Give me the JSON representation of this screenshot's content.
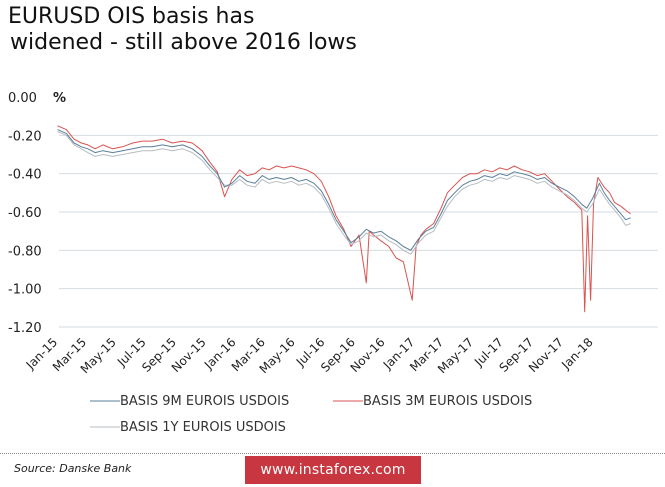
{
  "title_line1": "EURUSD OIS basis has",
  "title_line2": " widened - still above 2016  lows",
  "source": "Source: Danske Bank",
  "watermark": "www.instaforex.com",
  "colors": {
    "series_9m": "#5a7f9a",
    "series_3m": "#d9534f",
    "series_1y": "#b5bcc3",
    "grid": "#d6dbe0",
    "watermark_bg": "#c8373f"
  },
  "chart_data": {
    "type": "line",
    "title": "EURUSD OIS basis has widened - still above 2016  lows",
    "ylabel": "%",
    "ylim": [
      -1.2,
      0.0
    ],
    "yticks": [
      0.0,
      -0.2,
      -0.4,
      -0.6,
      -0.8,
      -1.0,
      -1.2
    ],
    "ytick_labels": [
      "0.00",
      "-0.20",
      "-0.40",
      "-0.60",
      "-0.80",
      "-1.00",
      "-1.20"
    ],
    "xlim": [
      "2015-01-01",
      "2018-03-31"
    ],
    "x_tick_labels": [
      "Jan-15",
      "Mar-15",
      "May-15",
      "Jul-15",
      "Sep-15",
      "Nov-15",
      "Jan-16",
      "Mar-16",
      "May-16",
      "Jul-16",
      "Sep-16",
      "Nov-16",
      "Jan-17",
      "Mar-17",
      "May-17",
      "Jul-17",
      "Sep-17",
      "Nov-17",
      "Jan-18"
    ],
    "x_tick_dates": [
      "2015-01-01",
      "2015-03-01",
      "2015-05-01",
      "2015-07-01",
      "2015-09-01",
      "2015-11-01",
      "2016-01-01",
      "2016-03-01",
      "2016-05-01",
      "2016-07-01",
      "2016-09-01",
      "2016-11-01",
      "2017-01-01",
      "2017-03-01",
      "2017-05-01",
      "2017-07-01",
      "2017-09-01",
      "2017-11-01",
      "2018-01-01"
    ],
    "grid": "horizontal",
    "legend_position": "bottom",
    "series": [
      {
        "name": "BASIS 9M EUROIS USDOIS",
        "color": "#5a7f9a",
        "points": [
          [
            "2015-01-02",
            -0.17
          ],
          [
            "2015-01-20",
            -0.19
          ],
          [
            "2015-02-05",
            -0.24
          ],
          [
            "2015-02-20",
            -0.26
          ],
          [
            "2015-03-05",
            -0.27
          ],
          [
            "2015-03-20",
            -0.29
          ],
          [
            "2015-04-05",
            -0.28
          ],
          [
            "2015-04-25",
            -0.29
          ],
          [
            "2015-05-15",
            -0.28
          ],
          [
            "2015-06-05",
            -0.27
          ],
          [
            "2015-06-25",
            -0.26
          ],
          [
            "2015-07-15",
            -0.26
          ],
          [
            "2015-08-05",
            -0.25
          ],
          [
            "2015-08-25",
            -0.26
          ],
          [
            "2015-09-15",
            -0.25
          ],
          [
            "2015-10-05",
            -0.27
          ],
          [
            "2015-10-25",
            -0.31
          ],
          [
            "2015-11-10",
            -0.36
          ],
          [
            "2015-11-25",
            -0.4
          ],
          [
            "2015-12-10",
            -0.47
          ],
          [
            "2015-12-25",
            -0.45
          ],
          [
            "2016-01-10",
            -0.41
          ],
          [
            "2016-01-25",
            -0.44
          ],
          [
            "2016-02-10",
            -0.45
          ],
          [
            "2016-02-25",
            -0.41
          ],
          [
            "2016-03-10",
            -0.43
          ],
          [
            "2016-03-25",
            -0.42
          ],
          [
            "2016-04-10",
            -0.43
          ],
          [
            "2016-04-25",
            -0.42
          ],
          [
            "2016-05-10",
            -0.44
          ],
          [
            "2016-05-25",
            -0.43
          ],
          [
            "2016-06-10",
            -0.45
          ],
          [
            "2016-06-25",
            -0.49
          ],
          [
            "2016-07-10",
            -0.56
          ],
          [
            "2016-07-25",
            -0.64
          ],
          [
            "2016-08-10",
            -0.7
          ],
          [
            "2016-08-25",
            -0.76
          ],
          [
            "2016-09-10",
            -0.73
          ],
          [
            "2016-09-25",
            -0.69
          ],
          [
            "2016-10-10",
            -0.71
          ],
          [
            "2016-10-25",
            -0.7
          ],
          [
            "2016-11-10",
            -0.73
          ],
          [
            "2016-11-25",
            -0.75
          ],
          [
            "2016-12-10",
            -0.78
          ],
          [
            "2016-12-25",
            -0.8
          ],
          [
            "2017-01-10",
            -0.74
          ],
          [
            "2017-01-25",
            -0.7
          ],
          [
            "2017-02-10",
            -0.68
          ],
          [
            "2017-02-25",
            -0.61
          ],
          [
            "2017-03-10",
            -0.54
          ],
          [
            "2017-03-25",
            -0.5
          ],
          [
            "2017-04-10",
            -0.46
          ],
          [
            "2017-04-25",
            -0.44
          ],
          [
            "2017-05-10",
            -0.43
          ],
          [
            "2017-05-25",
            -0.41
          ],
          [
            "2017-06-10",
            -0.42
          ],
          [
            "2017-06-25",
            -0.4
          ],
          [
            "2017-07-10",
            -0.41
          ],
          [
            "2017-07-25",
            -0.39
          ],
          [
            "2017-08-10",
            -0.4
          ],
          [
            "2017-08-25",
            -0.41
          ],
          [
            "2017-09-10",
            -0.43
          ],
          [
            "2017-09-25",
            -0.42
          ],
          [
            "2017-10-10",
            -0.45
          ],
          [
            "2017-10-25",
            -0.47
          ],
          [
            "2017-11-10",
            -0.49
          ],
          [
            "2017-11-25",
            -0.52
          ],
          [
            "2017-12-10",
            -0.56
          ],
          [
            "2017-12-20",
            -0.58
          ],
          [
            "2018-01-01",
            -0.53
          ],
          [
            "2018-01-15",
            -0.45
          ],
          [
            "2018-01-25",
            -0.5
          ],
          [
            "2018-02-05",
            -0.54
          ],
          [
            "2018-02-15",
            -0.57
          ],
          [
            "2018-02-28",
            -0.61
          ],
          [
            "2018-03-10",
            -0.64
          ],
          [
            "2018-03-20",
            -0.63
          ]
        ]
      },
      {
        "name": "BASIS 3M EUROIS USDOIS",
        "color": "#d9534f",
        "points": [
          [
            "2015-01-02",
            -0.15
          ],
          [
            "2015-01-20",
            -0.17
          ],
          [
            "2015-02-05",
            -0.22
          ],
          [
            "2015-02-20",
            -0.24
          ],
          [
            "2015-03-05",
            -0.25
          ],
          [
            "2015-03-20",
            -0.27
          ],
          [
            "2015-04-05",
            -0.25
          ],
          [
            "2015-04-25",
            -0.27
          ],
          [
            "2015-05-15",
            -0.26
          ],
          [
            "2015-06-05",
            -0.24
          ],
          [
            "2015-06-25",
            -0.23
          ],
          [
            "2015-07-15",
            -0.23
          ],
          [
            "2015-08-05",
            -0.22
          ],
          [
            "2015-08-25",
            -0.24
          ],
          [
            "2015-09-15",
            -0.23
          ],
          [
            "2015-10-05",
            -0.24
          ],
          [
            "2015-10-25",
            -0.28
          ],
          [
            "2015-11-10",
            -0.34
          ],
          [
            "2015-11-25",
            -0.39
          ],
          [
            "2015-12-10",
            -0.52
          ],
          [
            "2015-12-25",
            -0.43
          ],
          [
            "2016-01-10",
            -0.38
          ],
          [
            "2016-01-25",
            -0.41
          ],
          [
            "2016-02-10",
            -0.4
          ],
          [
            "2016-02-25",
            -0.37
          ],
          [
            "2016-03-10",
            -0.38
          ],
          [
            "2016-03-25",
            -0.36
          ],
          [
            "2016-04-10",
            -0.37
          ],
          [
            "2016-04-25",
            -0.36
          ],
          [
            "2016-05-10",
            -0.37
          ],
          [
            "2016-05-25",
            -0.38
          ],
          [
            "2016-06-10",
            -0.4
          ],
          [
            "2016-06-25",
            -0.44
          ],
          [
            "2016-07-10",
            -0.52
          ],
          [
            "2016-07-25",
            -0.62
          ],
          [
            "2016-08-10",
            -0.69
          ],
          [
            "2016-08-25",
            -0.78
          ],
          [
            "2016-09-10",
            -0.72
          ],
          [
            "2016-09-25",
            -0.97
          ],
          [
            "2016-10-01",
            -0.7
          ],
          [
            "2016-10-10",
            -0.72
          ],
          [
            "2016-10-25",
            -0.75
          ],
          [
            "2016-11-10",
            -0.78
          ],
          [
            "2016-11-25",
            -0.84
          ],
          [
            "2016-12-10",
            -0.86
          ],
          [
            "2016-12-28",
            -1.06
          ],
          [
            "2017-01-05",
            -0.78
          ],
          [
            "2017-01-15",
            -0.72
          ],
          [
            "2017-01-25",
            -0.69
          ],
          [
            "2017-02-10",
            -0.66
          ],
          [
            "2017-02-25",
            -0.58
          ],
          [
            "2017-03-10",
            -0.5
          ],
          [
            "2017-03-25",
            -0.46
          ],
          [
            "2017-04-10",
            -0.42
          ],
          [
            "2017-04-25",
            -0.4
          ],
          [
            "2017-05-10",
            -0.4
          ],
          [
            "2017-05-25",
            -0.38
          ],
          [
            "2017-06-10",
            -0.39
          ],
          [
            "2017-06-25",
            -0.37
          ],
          [
            "2017-07-10",
            -0.38
          ],
          [
            "2017-07-25",
            -0.36
          ],
          [
            "2017-08-10",
            -0.38
          ],
          [
            "2017-08-25",
            -0.39
          ],
          [
            "2017-09-10",
            -0.41
          ],
          [
            "2017-09-25",
            -0.4
          ],
          [
            "2017-10-10",
            -0.44
          ],
          [
            "2017-10-25",
            -0.48
          ],
          [
            "2017-11-10",
            -0.52
          ],
          [
            "2017-11-25",
            -0.55
          ],
          [
            "2017-12-10",
            -0.59
          ],
          [
            "2017-12-16",
            -1.12
          ],
          [
            "2017-12-22",
            -0.62
          ],
          [
            "2017-12-28",
            -1.06
          ],
          [
            "2018-01-03",
            -0.56
          ],
          [
            "2018-01-12",
            -0.42
          ],
          [
            "2018-01-25",
            -0.47
          ],
          [
            "2018-02-05",
            -0.5
          ],
          [
            "2018-02-15",
            -0.55
          ],
          [
            "2018-02-28",
            -0.57
          ],
          [
            "2018-03-10",
            -0.59
          ],
          [
            "2018-03-20",
            -0.61
          ]
        ]
      },
      {
        "name": "BASIS 1Y EUROIS USDOIS",
        "color": "#b5bcc3",
        "points": [
          [
            "2015-01-02",
            -0.18
          ],
          [
            "2015-01-20",
            -0.2
          ],
          [
            "2015-02-05",
            -0.25
          ],
          [
            "2015-02-20",
            -0.27
          ],
          [
            "2015-03-05",
            -0.29
          ],
          [
            "2015-03-20",
            -0.31
          ],
          [
            "2015-04-05",
            -0.3
          ],
          [
            "2015-04-25",
            -0.31
          ],
          [
            "2015-05-15",
            -0.3
          ],
          [
            "2015-06-05",
            -0.29
          ],
          [
            "2015-06-25",
            -0.28
          ],
          [
            "2015-07-15",
            -0.28
          ],
          [
            "2015-08-05",
            -0.27
          ],
          [
            "2015-08-25",
            -0.28
          ],
          [
            "2015-09-15",
            -0.27
          ],
          [
            "2015-10-05",
            -0.29
          ],
          [
            "2015-10-25",
            -0.33
          ],
          [
            "2015-11-10",
            -0.38
          ],
          [
            "2015-11-25",
            -0.42
          ],
          [
            "2015-12-10",
            -0.46
          ],
          [
            "2015-12-25",
            -0.46
          ],
          [
            "2016-01-10",
            -0.43
          ],
          [
            "2016-01-25",
            -0.46
          ],
          [
            "2016-02-10",
            -0.47
          ],
          [
            "2016-02-25",
            -0.43
          ],
          [
            "2016-03-10",
            -0.45
          ],
          [
            "2016-03-25",
            -0.44
          ],
          [
            "2016-04-10",
            -0.45
          ],
          [
            "2016-04-25",
            -0.44
          ],
          [
            "2016-05-10",
            -0.46
          ],
          [
            "2016-05-25",
            -0.45
          ],
          [
            "2016-06-10",
            -0.47
          ],
          [
            "2016-06-25",
            -0.51
          ],
          [
            "2016-07-10",
            -0.58
          ],
          [
            "2016-07-25",
            -0.66
          ],
          [
            "2016-08-10",
            -0.72
          ],
          [
            "2016-08-25",
            -0.77
          ],
          [
            "2016-09-10",
            -0.75
          ],
          [
            "2016-09-25",
            -0.71
          ],
          [
            "2016-10-10",
            -0.73
          ],
          [
            "2016-10-25",
            -0.72
          ],
          [
            "2016-11-10",
            -0.75
          ],
          [
            "2016-11-25",
            -0.77
          ],
          [
            "2016-12-10",
            -0.8
          ],
          [
            "2016-12-25",
            -0.82
          ],
          [
            "2017-01-10",
            -0.76
          ],
          [
            "2017-01-25",
            -0.72
          ],
          [
            "2017-02-10",
            -0.7
          ],
          [
            "2017-02-25",
            -0.63
          ],
          [
            "2017-03-10",
            -0.57
          ],
          [
            "2017-03-25",
            -0.52
          ],
          [
            "2017-04-10",
            -0.48
          ],
          [
            "2017-04-25",
            -0.46
          ],
          [
            "2017-05-10",
            -0.45
          ],
          [
            "2017-05-25",
            -0.43
          ],
          [
            "2017-06-10",
            -0.44
          ],
          [
            "2017-06-25",
            -0.42
          ],
          [
            "2017-07-10",
            -0.43
          ],
          [
            "2017-07-25",
            -0.41
          ],
          [
            "2017-08-10",
            -0.42
          ],
          [
            "2017-08-25",
            -0.43
          ],
          [
            "2017-09-10",
            -0.45
          ],
          [
            "2017-09-25",
            -0.44
          ],
          [
            "2017-10-10",
            -0.47
          ],
          [
            "2017-10-25",
            -0.49
          ],
          [
            "2017-11-10",
            -0.51
          ],
          [
            "2017-11-25",
            -0.54
          ],
          [
            "2017-12-10",
            -0.58
          ],
          [
            "2017-12-20",
            -0.6
          ],
          [
            "2018-01-01",
            -0.56
          ],
          [
            "2018-01-15",
            -0.48
          ],
          [
            "2018-01-25",
            -0.52
          ],
          [
            "2018-02-05",
            -0.56
          ],
          [
            "2018-02-15",
            -0.59
          ],
          [
            "2018-02-28",
            -0.63
          ],
          [
            "2018-03-10",
            -0.67
          ],
          [
            "2018-03-20",
            -0.66
          ]
        ]
      }
    ]
  }
}
